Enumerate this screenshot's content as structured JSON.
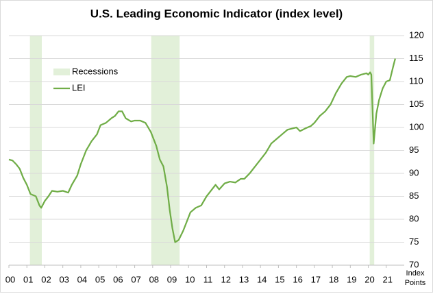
{
  "chart_data": {
    "type": "line",
    "title": "U.S. Leading Economic Indicator (index level)",
    "y_axis_label": [
      "Index",
      "Points"
    ],
    "x": [
      2000.0,
      2000.2,
      2000.4,
      2000.6,
      2000.8,
      2001.0,
      2001.2,
      2001.5,
      2001.7,
      2001.8,
      2002.0,
      2002.2,
      2002.4,
      2002.7,
      2003.0,
      2003.3,
      2003.5,
      2003.8,
      2004.0,
      2004.3,
      2004.6,
      2004.9,
      2005.1,
      2005.4,
      2005.7,
      2005.9,
      2006.1,
      2006.3,
      2006.5,
      2006.8,
      2007.0,
      2007.3,
      2007.6,
      2007.9,
      2008.2,
      2008.4,
      2008.6,
      2008.8,
      2008.95,
      2009.1,
      2009.25,
      2009.45,
      2009.7,
      2009.9,
      2010.1,
      2010.4,
      2010.7,
      2011.0,
      2011.3,
      2011.5,
      2011.7,
      2012.0,
      2012.3,
      2012.6,
      2012.9,
      2013.1,
      2013.4,
      2013.7,
      2014.0,
      2014.3,
      2014.6,
      2014.9,
      2015.2,
      2015.5,
      2015.8,
      2016.0,
      2016.2,
      2016.5,
      2016.8,
      2017.0,
      2017.3,
      2017.6,
      2017.9,
      2018.2,
      2018.5,
      2018.8,
      2019.0,
      2019.3,
      2019.6,
      2019.9,
      2020.0,
      2020.1,
      2020.17,
      2020.3,
      2020.45,
      2020.6,
      2020.8,
      2021.0,
      2021.2,
      2021.4,
      2021.5
    ],
    "series": [
      {
        "name": "LEI",
        "color": "#70ad47",
        "axis": "y2",
        "values": [
          93,
          92.8,
          92,
          91,
          89,
          87.5,
          85.5,
          85,
          83,
          82.5,
          84,
          85,
          86.2,
          86,
          86.2,
          85.8,
          87.5,
          89.5,
          92,
          95,
          97,
          98.5,
          100.5,
          101,
          102,
          102.5,
          103.5,
          103.5,
          102,
          101.3,
          101.5,
          101.5,
          101,
          99,
          96,
          93,
          91.5,
          87,
          82,
          78,
          75,
          75.5,
          77.5,
          79.5,
          81.5,
          82.5,
          83,
          85,
          86.5,
          87.5,
          86.5,
          87.8,
          88.2,
          88,
          88.8,
          88.8,
          90,
          91.5,
          93,
          94.5,
          96.5,
          97.5,
          98.5,
          99.5,
          99.8,
          100,
          99.2,
          99.8,
          100.3,
          101,
          102.5,
          103.5,
          105,
          107.5,
          109.5,
          111,
          111.2,
          111,
          111.5,
          111.8,
          111.5,
          112,
          111.5,
          96.5,
          103,
          106,
          108.5,
          110,
          110.3,
          113.5,
          115
        ]
      }
    ],
    "recessions": {
      "name": "Recessions",
      "color": "#e2f0d9",
      "spans": [
        [
          2001.17,
          2001.83
        ],
        [
          2007.92,
          2009.5
        ],
        [
          2020.08,
          2020.33
        ]
      ]
    },
    "xlim": [
      2000,
      2022
    ],
    "xticks": [
      {
        "value": 2000,
        "label": "00"
      },
      {
        "value": 2001,
        "label": "01"
      },
      {
        "value": 2002,
        "label": "02"
      },
      {
        "value": 2003,
        "label": "03"
      },
      {
        "value": 2004,
        "label": "04"
      },
      {
        "value": 2005,
        "label": "05"
      },
      {
        "value": 2006,
        "label": "06"
      },
      {
        "value": 2007,
        "label": "07"
      },
      {
        "value": 2008,
        "label": "08"
      },
      {
        "value": 2009,
        "label": "09"
      },
      {
        "value": 2010,
        "label": "10"
      },
      {
        "value": 2011,
        "label": "11"
      },
      {
        "value": 2012,
        "label": "12"
      },
      {
        "value": 2013,
        "label": "13"
      },
      {
        "value": 2014,
        "label": "14"
      },
      {
        "value": 2015,
        "label": "15"
      },
      {
        "value": 2016,
        "label": "16"
      },
      {
        "value": 2017,
        "label": "17"
      },
      {
        "value": 2018,
        "label": "18"
      },
      {
        "value": 2019,
        "label": "19"
      },
      {
        "value": 2020,
        "label": "20"
      },
      {
        "value": 2021,
        "label": "21"
      }
    ],
    "y2lim": [
      70,
      120
    ],
    "y2ticks": [
      70,
      75,
      80,
      85,
      90,
      95,
      100,
      105,
      110,
      115,
      120
    ],
    "grid": true,
    "legend": "upper left"
  }
}
